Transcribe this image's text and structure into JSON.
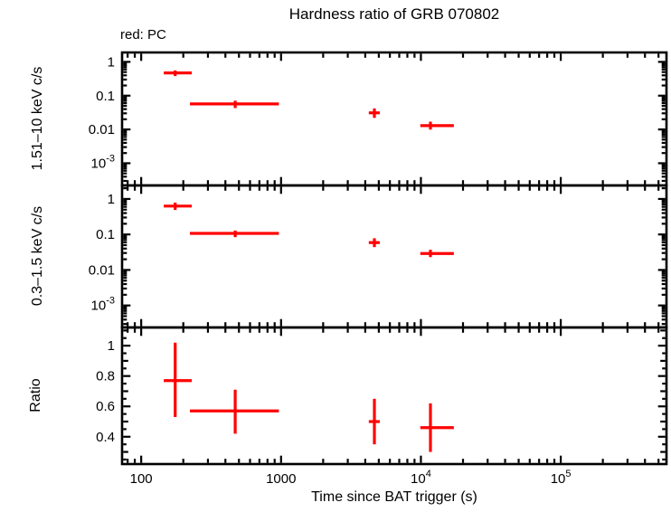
{
  "chart_data": {
    "type": "scatter",
    "title": "Hardness ratio of GRB 070802",
    "annotation": "red: PC",
    "series_name": "PC",
    "legend_position": "top-left",
    "grid": false,
    "colors": {
      "data": "#ff0000",
      "frame": "#000000",
      "background": "#ffffff"
    },
    "x_axis": {
      "label": "Time since BAT trigger (s)",
      "scale": "log",
      "range": [
        73,
        570000
      ],
      "ticks": [
        {
          "value": 100,
          "text": "100"
        },
        {
          "value": 1000,
          "text": "1000"
        },
        {
          "value": 10000,
          "text": "10",
          "sup": "4"
        },
        {
          "value": 100000,
          "text": "10",
          "sup": "5"
        }
      ]
    },
    "panels": [
      {
        "id": "hard",
        "ylabel": "1.51–10 keV c/s",
        "scale": "log",
        "ylim": [
          0.00022,
          1.9
        ],
        "ticks": [
          {
            "value": 1,
            "text": "1"
          },
          {
            "value": 0.1,
            "text": "0.1"
          },
          {
            "value": 0.01,
            "text": "0.01"
          },
          {
            "value": 0.001,
            "text": "10",
            "sup": "-3"
          }
        ],
        "points": [
          {
            "t": 175,
            "t_lo": 145,
            "t_hi": 230,
            "v": 0.47,
            "v_lo": 0.38,
            "v_hi": 0.56
          },
          {
            "t": 470,
            "t_lo": 223,
            "t_hi": 965,
            "v": 0.057,
            "v_lo": 0.043,
            "v_hi": 0.071
          },
          {
            "t": 4650,
            "t_lo": 4240,
            "t_hi": 5080,
            "v": 0.031,
            "v_lo": 0.022,
            "v_hi": 0.042
          },
          {
            "t": 11700,
            "t_lo": 9900,
            "t_hi": 17200,
            "v": 0.013,
            "v_lo": 0.0099,
            "v_hi": 0.017
          }
        ]
      },
      {
        "id": "soft",
        "ylabel": "0.3–1.5 keV c/s",
        "scale": "log",
        "ylim": [
          0.00024,
          2.4
        ],
        "ticks": [
          {
            "value": 1,
            "text": "1"
          },
          {
            "value": 0.1,
            "text": "0.1"
          },
          {
            "value": 0.01,
            "text": "0.01"
          },
          {
            "value": 0.001,
            "text": "10",
            "sup": "-3"
          }
        ],
        "points": [
          {
            "t": 175,
            "t_lo": 145,
            "t_hi": 230,
            "v": 0.63,
            "v_lo": 0.49,
            "v_hi": 0.79
          },
          {
            "t": 470,
            "t_lo": 223,
            "t_hi": 965,
            "v": 0.107,
            "v_lo": 0.084,
            "v_hi": 0.129
          },
          {
            "t": 4650,
            "t_lo": 4240,
            "t_hi": 5080,
            "v": 0.059,
            "v_lo": 0.044,
            "v_hi": 0.078
          },
          {
            "t": 11700,
            "t_lo": 9900,
            "t_hi": 17200,
            "v": 0.029,
            "v_lo": 0.023,
            "v_hi": 0.037
          }
        ]
      },
      {
        "id": "ratio",
        "ylabel": "Ratio",
        "scale": "linear",
        "ylim": [
          0.22,
          1.12
        ],
        "minor_step": 0.05,
        "ticks": [
          {
            "value": 1,
            "text": "1"
          },
          {
            "value": 0.8,
            "text": "0.8"
          },
          {
            "value": 0.6,
            "text": "0.6"
          },
          {
            "value": 0.4,
            "text": "0.4"
          }
        ],
        "points": [
          {
            "t": 175,
            "t_lo": 145,
            "t_hi": 230,
            "v": 0.77,
            "v_lo": 0.53,
            "v_hi": 1.02
          },
          {
            "t": 470,
            "t_lo": 223,
            "t_hi": 965,
            "v": 0.57,
            "v_lo": 0.42,
            "v_hi": 0.71
          },
          {
            "t": 4650,
            "t_lo": 4240,
            "t_hi": 5080,
            "v": 0.5,
            "v_lo": 0.35,
            "v_hi": 0.65
          },
          {
            "t": 11700,
            "t_lo": 9900,
            "t_hi": 17200,
            "v": 0.46,
            "v_lo": 0.3,
            "v_hi": 0.62
          }
        ]
      }
    ]
  }
}
